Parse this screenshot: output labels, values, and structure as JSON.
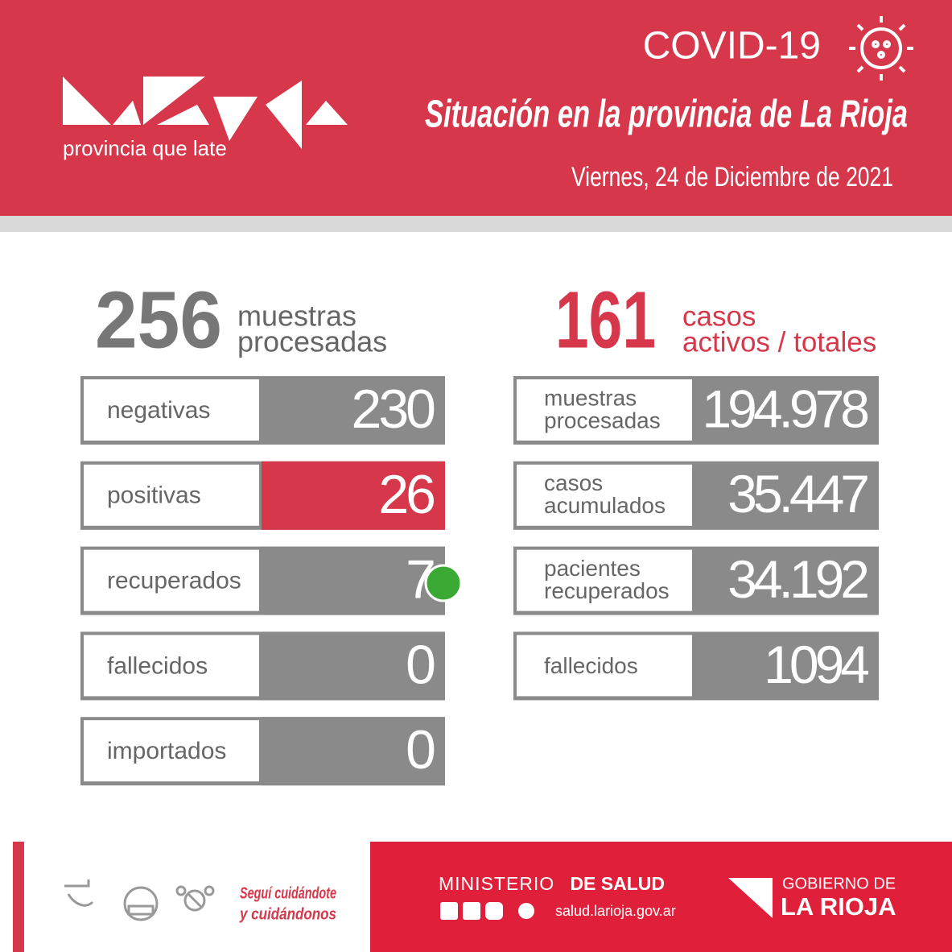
{
  "header": {
    "tagline": "provincia que late",
    "title": "COVID-19",
    "subtitle": "Situación en la provincia de La Rioja",
    "date": "Viernes, 24 de Diciembre de 2021"
  },
  "daily": {
    "total": "256",
    "total_label": [
      "muestras",
      "procesadas"
    ],
    "rows": [
      {
        "label": "negativas",
        "value": "230",
        "color": "#8a8a8a"
      },
      {
        "label": "positivas",
        "value": "26",
        "color": "#d7374a"
      },
      {
        "label": "recuperados",
        "value": "7",
        "color": "#8a8a8a"
      },
      {
        "label": "fallecidos",
        "value": "0",
        "color": "#8a8a8a"
      },
      {
        "label": "importados",
        "value": "0",
        "color": "#8a8a8a"
      }
    ]
  },
  "cumulative": {
    "total": "161",
    "total_label": [
      "casos",
      "activos / totales"
    ],
    "rows": [
      {
        "label": [
          "muestras",
          "procesadas"
        ],
        "value": "194.978"
      },
      {
        "label": [
          "casos",
          "acumulados"
        ],
        "value": "35.447"
      },
      {
        "label": [
          "pacientes",
          "recuperados"
        ],
        "value": "34.192"
      },
      {
        "label": [
          "fallecidos"
        ],
        "value": "1094"
      }
    ]
  },
  "footer": {
    "slogan": [
      "Seguí cuidándote",
      "y cuidándonos"
    ],
    "ministry": "MINISTERIO",
    "ministry_bold": "DE SALUD",
    "url": "salud.larioja.gov.ar",
    "government": "GOBIERNO DE",
    "government_bold": "LA RIOJA"
  }
}
